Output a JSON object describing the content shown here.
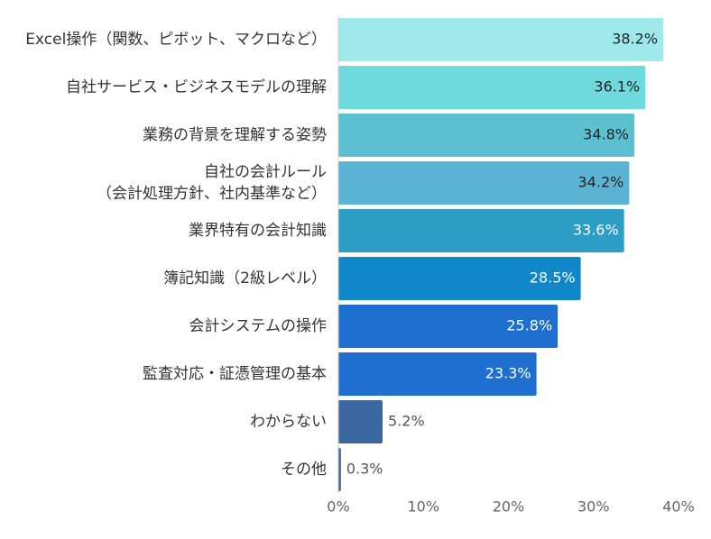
{
  "chart_data": {
    "type": "bar",
    "orientation": "horizontal",
    "categories": [
      [
        "Excel操作（関数、ピボット、マクロなど）"
      ],
      [
        "自社サービス・ビジネスモデルの理解"
      ],
      [
        "業務の背景を理解する姿勢"
      ],
      [
        "自社の会計ルール",
        "（会計処理方針、社内基準など）"
      ],
      [
        "業界特有の会計知識"
      ],
      [
        "簿記知識（2級レベル）"
      ],
      [
        "会計システムの操作"
      ],
      [
        "監査対応・証憑管理の基本"
      ],
      [
        "わからない"
      ],
      [
        "その他"
      ]
    ],
    "values": [
      38.2,
      36.1,
      34.8,
      34.2,
      33.6,
      28.5,
      25.8,
      23.3,
      5.2,
      0.3
    ],
    "value_labels": [
      "38.2%",
      "36.1%",
      "34.8%",
      "34.2%",
      "33.6%",
      "28.5%",
      "25.8%",
      "23.3%",
      "5.2%",
      "0.3%"
    ],
    "colors": [
      "#9fe9ec",
      "#6fdadb",
      "#5cc0d1",
      "#5cb4d5",
      "#2c9dc4",
      "#0f87c9",
      "#1e6fd0",
      "#1e6fd0",
      "#3b66a0",
      "#3b66a0"
    ],
    "label_colors": [
      "#222222",
      "#222222",
      "#222222",
      "#222222",
      "#ffffff",
      "#ffffff",
      "#ffffff",
      "#ffffff",
      "#555555",
      "#555555"
    ],
    "label_inside": [
      true,
      true,
      true,
      true,
      true,
      true,
      true,
      true,
      false,
      false
    ],
    "xlim": [
      0,
      40
    ],
    "xticks": [
      0,
      10,
      20,
      30,
      40
    ],
    "xtick_labels": [
      "0%",
      "10%",
      "20%",
      "30%",
      "40%"
    ],
    "title": "",
    "xlabel": "",
    "ylabel": "",
    "grid": false
  }
}
